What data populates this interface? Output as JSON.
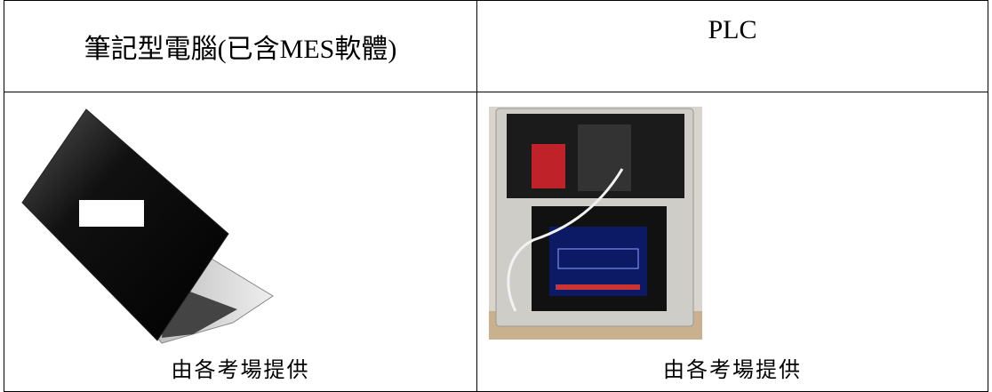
{
  "table": {
    "header": [
      "筆記型電腦(已含MES軟體)",
      "PLC"
    ],
    "rows": [
      [
        "由各考場提供",
        "由各考場提供"
      ]
    ]
  }
}
